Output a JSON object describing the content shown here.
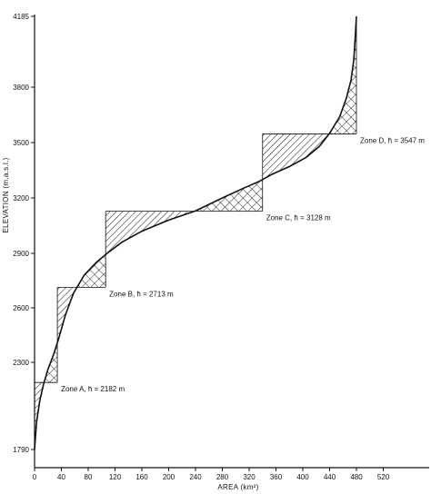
{
  "chart_data": {
    "type": "line",
    "title": "",
    "xlabel": "AREA (km²)",
    "ylabel": "ELEVATION (m.a.s.l.)",
    "xlim": [
      0,
      560
    ],
    "ylim": [
      1700,
      4185
    ],
    "x_ticks": [
      "0",
      "40",
      "80",
      "120",
      "160",
      "200",
      "240",
      "280",
      "320",
      "360",
      "400",
      "440",
      "480",
      "520"
    ],
    "y_ticks": [
      "1790",
      "2300",
      "2600",
      "2900",
      "3200",
      "3500",
      "3800",
      "4185"
    ],
    "y_tick_values": [
      1790,
      2300,
      2600,
      2900,
      3200,
      3500,
      3800,
      4185
    ],
    "grid": false,
    "series": [
      {
        "points": [
          [
            0,
            1790
          ],
          [
            3,
            1950
          ],
          [
            8,
            2080
          ],
          [
            14,
            2180
          ],
          [
            20,
            2260
          ],
          [
            28,
            2340
          ],
          [
            36,
            2430
          ],
          [
            46,
            2560
          ],
          [
            58,
            2680
          ],
          [
            74,
            2780
          ],
          [
            92,
            2850
          ],
          [
            108,
            2900
          ],
          [
            130,
            2960
          ],
          [
            160,
            3020
          ],
          [
            200,
            3080
          ],
          [
            240,
            3130
          ],
          [
            280,
            3200
          ],
          [
            310,
            3250
          ],
          [
            335,
            3290
          ],
          [
            355,
            3330
          ],
          [
            380,
            3370
          ],
          [
            405,
            3420
          ],
          [
            425,
            3480
          ],
          [
            440,
            3550
          ],
          [
            455,
            3640
          ],
          [
            465,
            3740
          ],
          [
            472,
            3840
          ],
          [
            476,
            3950
          ],
          [
            478,
            4060
          ],
          [
            480,
            4185
          ]
        ]
      }
    ],
    "zones": [
      {
        "label": "Zone A, h̄ = 2182 m",
        "x0": 0,
        "x1": 34,
        "y_lower": 1930,
        "y_mean": 2182,
        "y_upper": 2420
      },
      {
        "label": "Zone B, h̄ = 2713 m",
        "x0": 34,
        "x1": 106,
        "y_lower": 2420,
        "y_mean": 2713,
        "y_upper": 2880
      },
      {
        "label": "Zone C, h̄ = 3128 m",
        "x0": 106,
        "x1": 340,
        "y_lower": 2880,
        "y_mean": 3128,
        "y_upper": 3360
      },
      {
        "label": "Zone D, h̄ = 3547 m",
        "x0": 340,
        "x1": 480,
        "y_lower": 3360,
        "y_mean": 3547,
        "y_upper": 3900
      }
    ]
  }
}
